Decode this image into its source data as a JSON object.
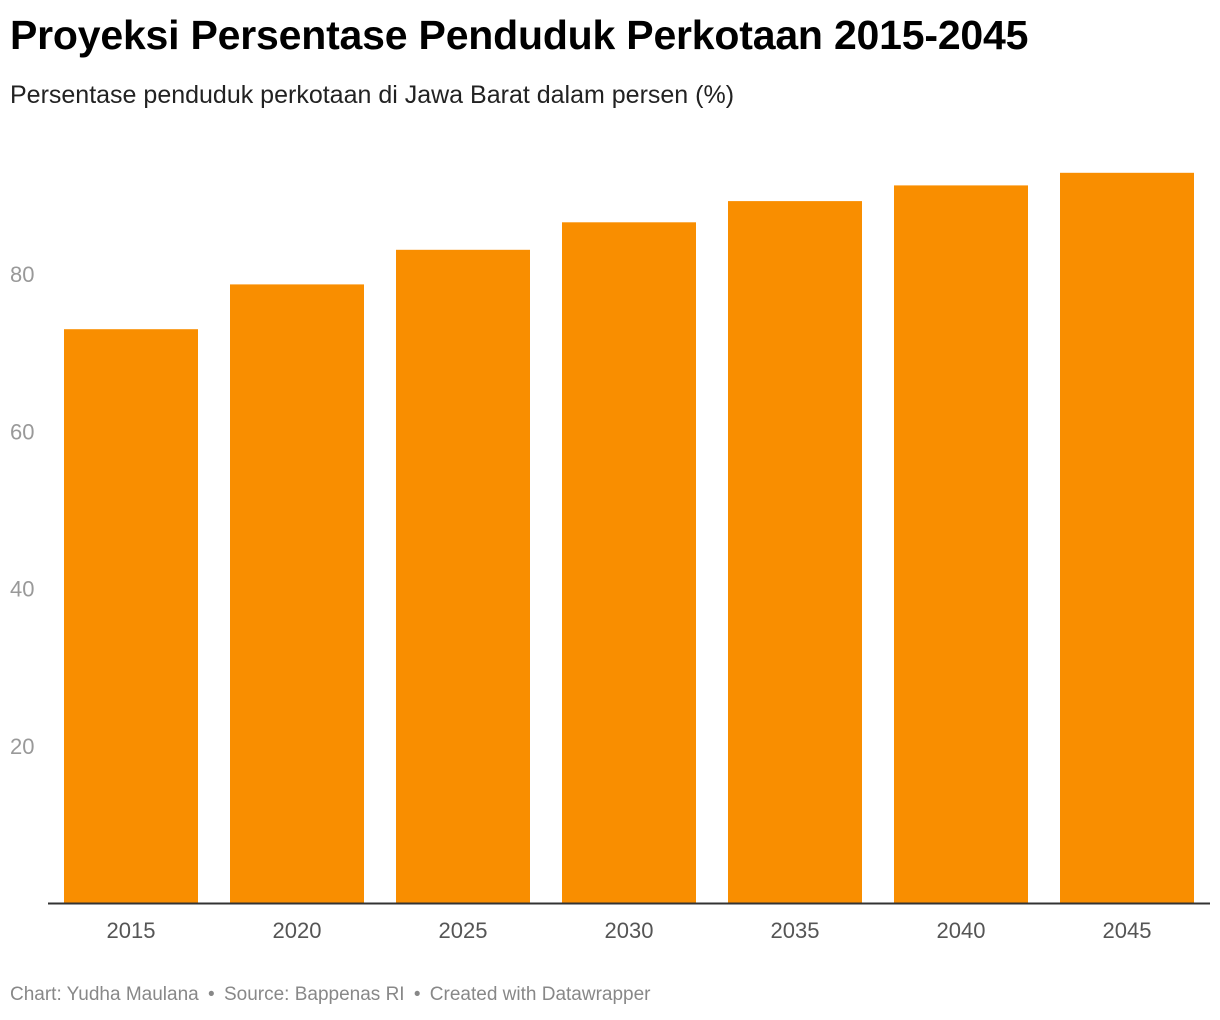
{
  "title": "Proyeksi Persentase Penduduk Perkotaan 2015-2045",
  "subtitle": "Persentase penduduk perkotaan di Jawa Barat dalam persen (%)",
  "footer": {
    "chart_by": "Chart: Yudha Maulana",
    "separator": "•",
    "source": "Source: Bappenas RI",
    "created_with": "Created with Datawrapper"
  },
  "colors": {
    "bar": "#f98e00",
    "axis_line": "#333333",
    "y_tick_label": "#999999",
    "x_tick_label": "#555555"
  },
  "chart_data": {
    "type": "bar",
    "title": "Proyeksi Persentase Penduduk Perkotaan 2015-2045",
    "subtitle": "Persentase penduduk perkotaan di Jawa Barat dalam persen (%)",
    "categories": [
      "2015",
      "2020",
      "2025",
      "2030",
      "2035",
      "2040",
      "2045"
    ],
    "values": [
      73.0,
      78.7,
      83.1,
      86.6,
      89.3,
      91.3,
      92.9
    ],
    "y_ticks": [
      20,
      40,
      60,
      80
    ],
    "ylim": [
      0,
      92.9
    ],
    "grid": false,
    "legend": "none",
    "xlabel": "",
    "ylabel": ""
  }
}
